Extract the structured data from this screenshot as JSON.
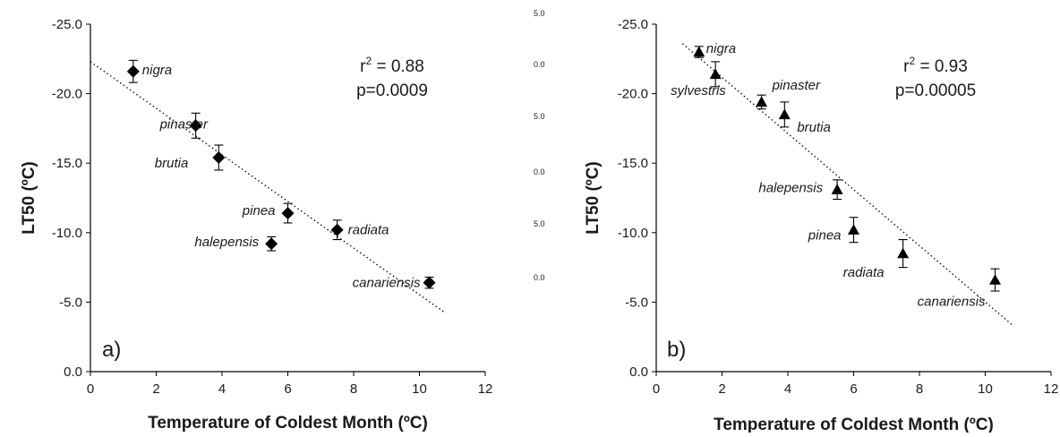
{
  "chart_data": [
    {
      "type": "scatter",
      "panel_label": "a)",
      "xlabel": "Temperature of Coldest Month (ºC)",
      "ylabel": "LT50 (ºC)",
      "xlim": [
        0,
        12
      ],
      "ylim": [
        0,
        -25
      ],
      "x_ticks": [
        "0",
        "2",
        "4",
        "6",
        "8",
        "10",
        "12"
      ],
      "y_ticks": [
        "0.0",
        "-5.0",
        "-10.0",
        "-15.0",
        "-20.0",
        "-25.0"
      ],
      "marker": "diamond",
      "stats": {
        "r2_prefix": "r",
        "r2_sup": "2",
        "r2_value": " = 0.88",
        "p": "p=0.0009"
      },
      "points": [
        {
          "label": "nigra",
          "x": 1.3,
          "y": -21.6,
          "err": 0.8
        },
        {
          "label": "pinaster",
          "x": 3.2,
          "y": -17.7,
          "err": 0.9
        },
        {
          "label": "brutia",
          "x": 3.9,
          "y": -15.4,
          "err": 0.9
        },
        {
          "label": "pinea",
          "x": 6.0,
          "y": -11.4,
          "err": 0.7
        },
        {
          "label": "halepensis",
          "x": 5.5,
          "y": -9.2,
          "err": 0.5
        },
        {
          "label": "radiata",
          "x": 7.5,
          "y": -10.2,
          "err": 0.7
        },
        {
          "label": "canariensis",
          "x": 10.3,
          "y": -6.4,
          "err": 0.4
        }
      ],
      "trendline": {
        "x": [
          0,
          10.8
        ],
        "y": [
          -22.3,
          -4.2
        ]
      }
    },
    {
      "type": "scatter",
      "panel_label": "b)",
      "xlabel": "Temperature of Coldest Month (ºC)",
      "ylabel": "LT50 (ºC)",
      "xlim": [
        0,
        12
      ],
      "ylim": [
        0,
        -25
      ],
      "x_ticks": [
        "0",
        "2",
        "4",
        "6",
        "8",
        "10",
        "12"
      ],
      "y_ticks": [
        "0.0",
        "-5.0",
        "-10.0",
        "-15.0",
        "-20.0",
        "-25.0"
      ],
      "marker": "triangle",
      "stats": {
        "r2_prefix": "r",
        "r2_sup": "2",
        "r2_value": " = 0.93",
        "p": "p=0.00005"
      },
      "points": [
        {
          "label": "nigra",
          "x": 1.3,
          "y": -23.0,
          "err": 0.4
        },
        {
          "label": "sylvestris",
          "x": 1.8,
          "y": -21.4,
          "err": 0.9
        },
        {
          "label": "pinaster",
          "x": 3.2,
          "y": -19.4,
          "err": 0.5
        },
        {
          "label": "brutia",
          "x": 3.9,
          "y": -18.5,
          "err": 0.9
        },
        {
          "label": "halepensis",
          "x": 5.5,
          "y": -13.1,
          "err": 0.7
        },
        {
          "label": "pinea",
          "x": 6.0,
          "y": -10.2,
          "err": 0.9
        },
        {
          "label": "radiata",
          "x": 7.5,
          "y": -8.5,
          "err": 1.0
        },
        {
          "label": "canariensis",
          "x": 10.3,
          "y": -6.6,
          "err": 0.8
        }
      ],
      "trendline": {
        "x": [
          0.8,
          10.8
        ],
        "y": [
          -23.6,
          -3.4
        ]
      }
    }
  ],
  "stray_ticks": [
    "5.0",
    "0.0",
    "5.0",
    "0.0",
    "5.0",
    "0.0"
  ]
}
